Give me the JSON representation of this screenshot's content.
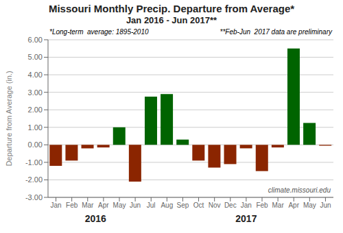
{
  "chart_data": {
    "type": "bar",
    "title": "Missouri Monthly Precip. Departure from Average*",
    "subtitle": "Jan 2016 - Jun 2017**",
    "ylabel": "Departure from Average (in.)",
    "categories": [
      "Jan",
      "Feb",
      "Mar",
      "Apr",
      "May",
      "Jun",
      "Jul",
      "Aug",
      "Sep",
      "Oct",
      "Nov",
      "Dec",
      "Jan",
      "Feb",
      "Mar",
      "Apr",
      "May",
      "Jun"
    ],
    "values": [
      -1.2,
      -0.9,
      -0.2,
      -0.15,
      1.0,
      -2.1,
      2.75,
      2.9,
      0.3,
      -0.9,
      -1.3,
      -1.1,
      -0.2,
      -1.5,
      -0.15,
      5.5,
      1.25,
      -0.05
    ],
    "colors": [
      "#8B2500",
      "#8B2500",
      "#8B2500",
      "#8B2500",
      "#006400",
      "#8B2500",
      "#006400",
      "#006400",
      "#006400",
      "#8B2500",
      "#8B2500",
      "#8B2500",
      "#8B2500",
      "#8B2500",
      "#8B2500",
      "#006400",
      "#006400",
      "#8B2500"
    ],
    "ylim": [
      -3.0,
      6.0
    ],
    "yticks": [
      {
        "value": -3.0,
        "label": "-3.00"
      },
      {
        "value": -2.0,
        "label": "-2.00"
      },
      {
        "value": -1.0,
        "label": "-1.00"
      },
      {
        "value": 0.0,
        "label": "0.00"
      },
      {
        "value": 1.0,
        "label": "1.00"
      },
      {
        "value": 2.0,
        "label": "2.00"
      },
      {
        "value": 3.0,
        "label": "3.00"
      },
      {
        "value": 4.0,
        "label": "4.00"
      },
      {
        "value": 5.0,
        "label": "5.00"
      },
      {
        "value": 6.0,
        "label": "6.00"
      }
    ],
    "grid": true,
    "annotations": [
      "*Long-term  average: 1895-2010",
      "**Feb-Jun  2017 data are preliminary",
      "climate.missouri.edu",
      {
        "text": "2016",
        "x": 2.5
      },
      {
        "text": "2017",
        "x": 12.0
      }
    ]
  }
}
